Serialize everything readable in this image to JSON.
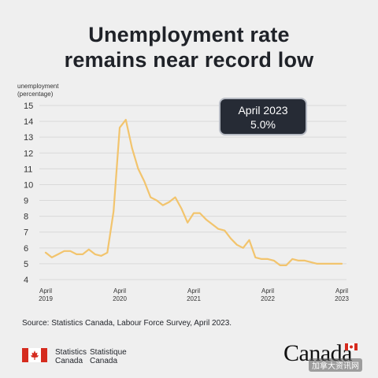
{
  "title_line1": "Unemployment rate",
  "title_line2": "remains near record low",
  "callout": {
    "line1": "April 2023",
    "line2": "5.0%"
  },
  "source": "Source: Statistics Canada, Labour Force Survey, April 2023.",
  "footer": {
    "statistics_en_1": "Statistics",
    "statistics_en_2": "Canada",
    "statistics_fr_1": "Statistique",
    "statistics_fr_2": "Canada",
    "wordmark": "Canada",
    "watermark": "加拿大资讯网"
  },
  "colors": {
    "line": "#f2c46d",
    "callout_bg": "#262b35",
    "background": "#efefef"
  },
  "chart_data": {
    "type": "line",
    "title": "Unemployment rate remains near record low",
    "ylabel_line1": "unemployment",
    "ylabel_line2": "(percentage)",
    "ylim": [
      4,
      15
    ],
    "yticks": [
      4,
      5,
      6,
      7,
      8,
      9,
      10,
      11,
      12,
      13,
      14,
      15
    ],
    "xticks": [
      {
        "index": 0,
        "month": "April",
        "year": "2019"
      },
      {
        "index": 12,
        "month": "April",
        "year": "2020"
      },
      {
        "index": 24,
        "month": "April",
        "year": "2021"
      },
      {
        "index": 36,
        "month": "April",
        "year": "2022"
      },
      {
        "index": 48,
        "month": "April",
        "year": "2023"
      }
    ],
    "grid": true,
    "series": [
      {
        "values": [
          5.7,
          5.4,
          5.6,
          5.8,
          5.8,
          5.6,
          5.6,
          5.9,
          5.6,
          5.5,
          5.7,
          8.3,
          13.6,
          14.1,
          12.3,
          11.0,
          10.2,
          9.2,
          9.0,
          8.7,
          8.9,
          9.2,
          8.5,
          7.6,
          8.2,
          8.2,
          7.8,
          7.5,
          7.2,
          7.1,
          6.6,
          6.2,
          6.0,
          6.5,
          5.4,
          5.3,
          5.3,
          5.2,
          4.9,
          4.9,
          5.3,
          5.2,
          5.2,
          5.1,
          5.0,
          5.0,
          5.0,
          5.0,
          5.0
        ]
      }
    ]
  }
}
